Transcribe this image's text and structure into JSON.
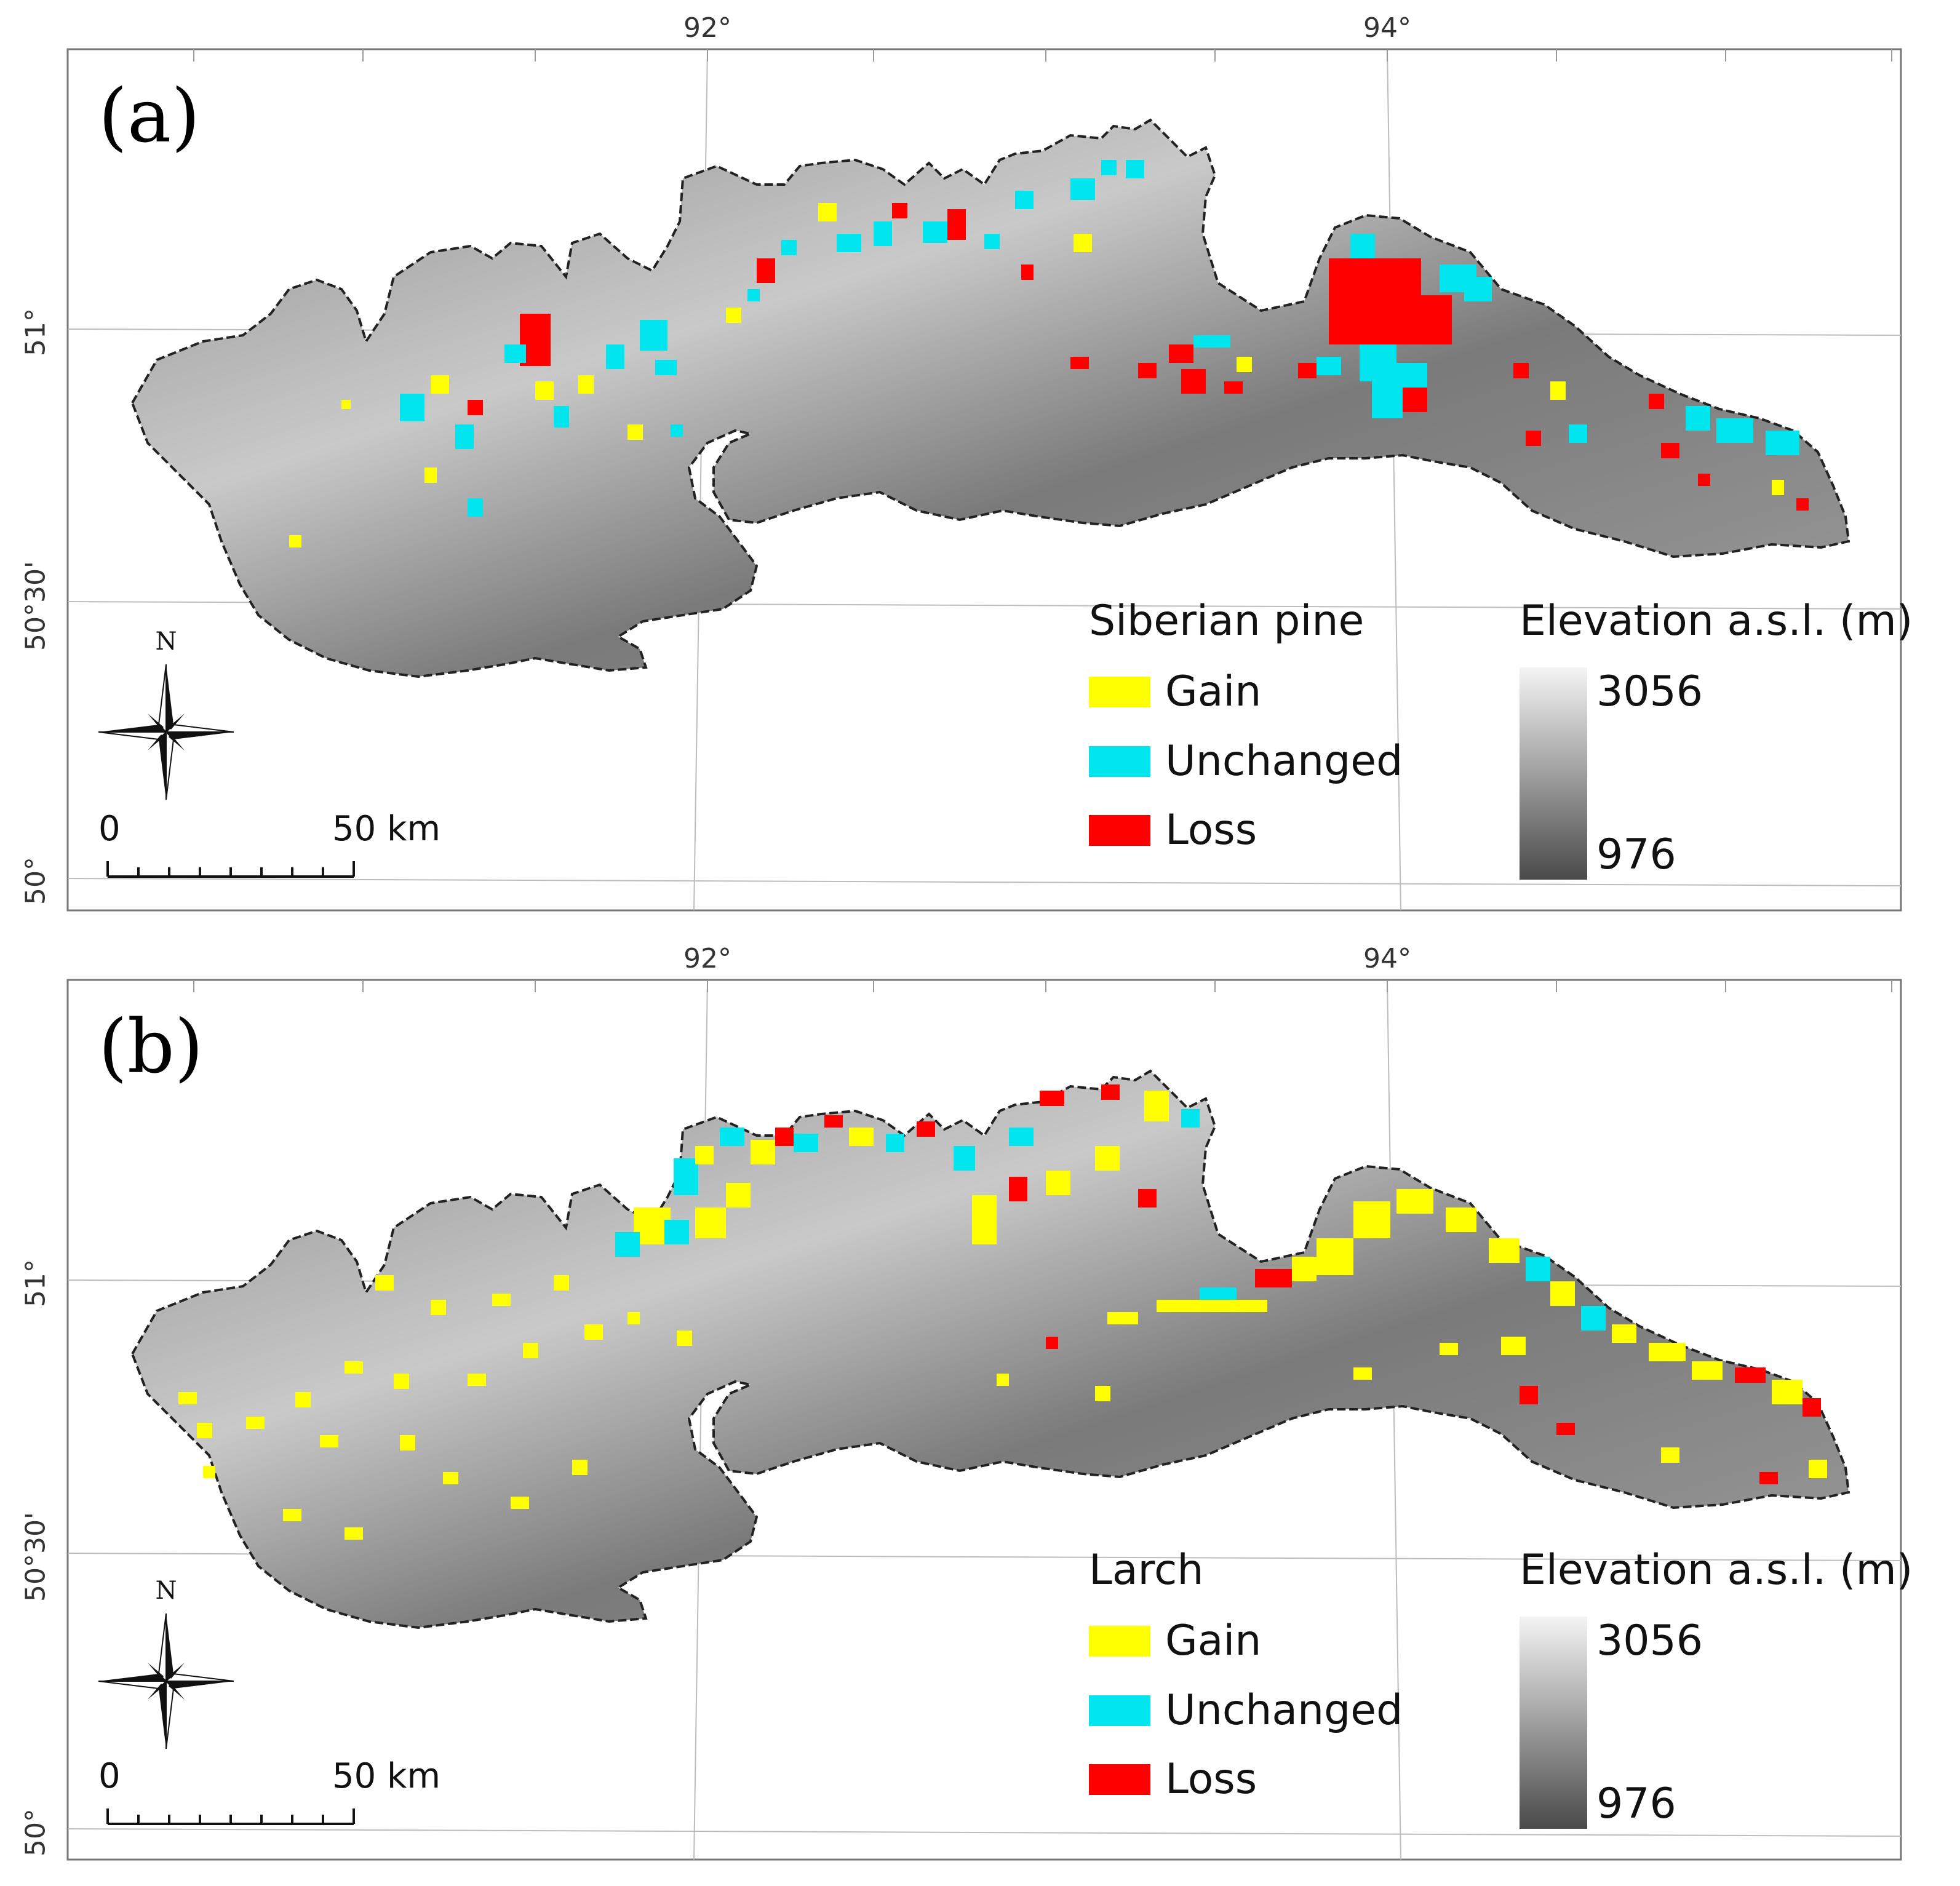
{
  "lon_ticks": [
    "92°",
    "94°"
  ],
  "lat_ticks": [
    "51°",
    "50°30'",
    "50°"
  ],
  "colors": {
    "gain": "#ffff00",
    "unchanged": "#00e5ee",
    "loss": "#ff0000"
  },
  "north": {
    "label": "N"
  },
  "scale_bar": {
    "start": "0",
    "end": "50 km"
  },
  "panels": [
    {
      "label": "(a)",
      "species": "Siberian pine",
      "legend": {
        "gain": "Gain",
        "unchanged": "Unchanged",
        "loss": "Loss"
      },
      "elevation": {
        "title": "Elevation a.s.l. (m)",
        "max": "3056",
        "min": "976"
      }
    },
    {
      "label": "(b)",
      "species": "Larch",
      "legend": {
        "gain": "Gain",
        "unchanged": "Unchanged",
        "loss": "Loss"
      },
      "elevation": {
        "title": "Elevation a.s.l. (m)",
        "max": "3056",
        "min": "976"
      }
    }
  ]
}
